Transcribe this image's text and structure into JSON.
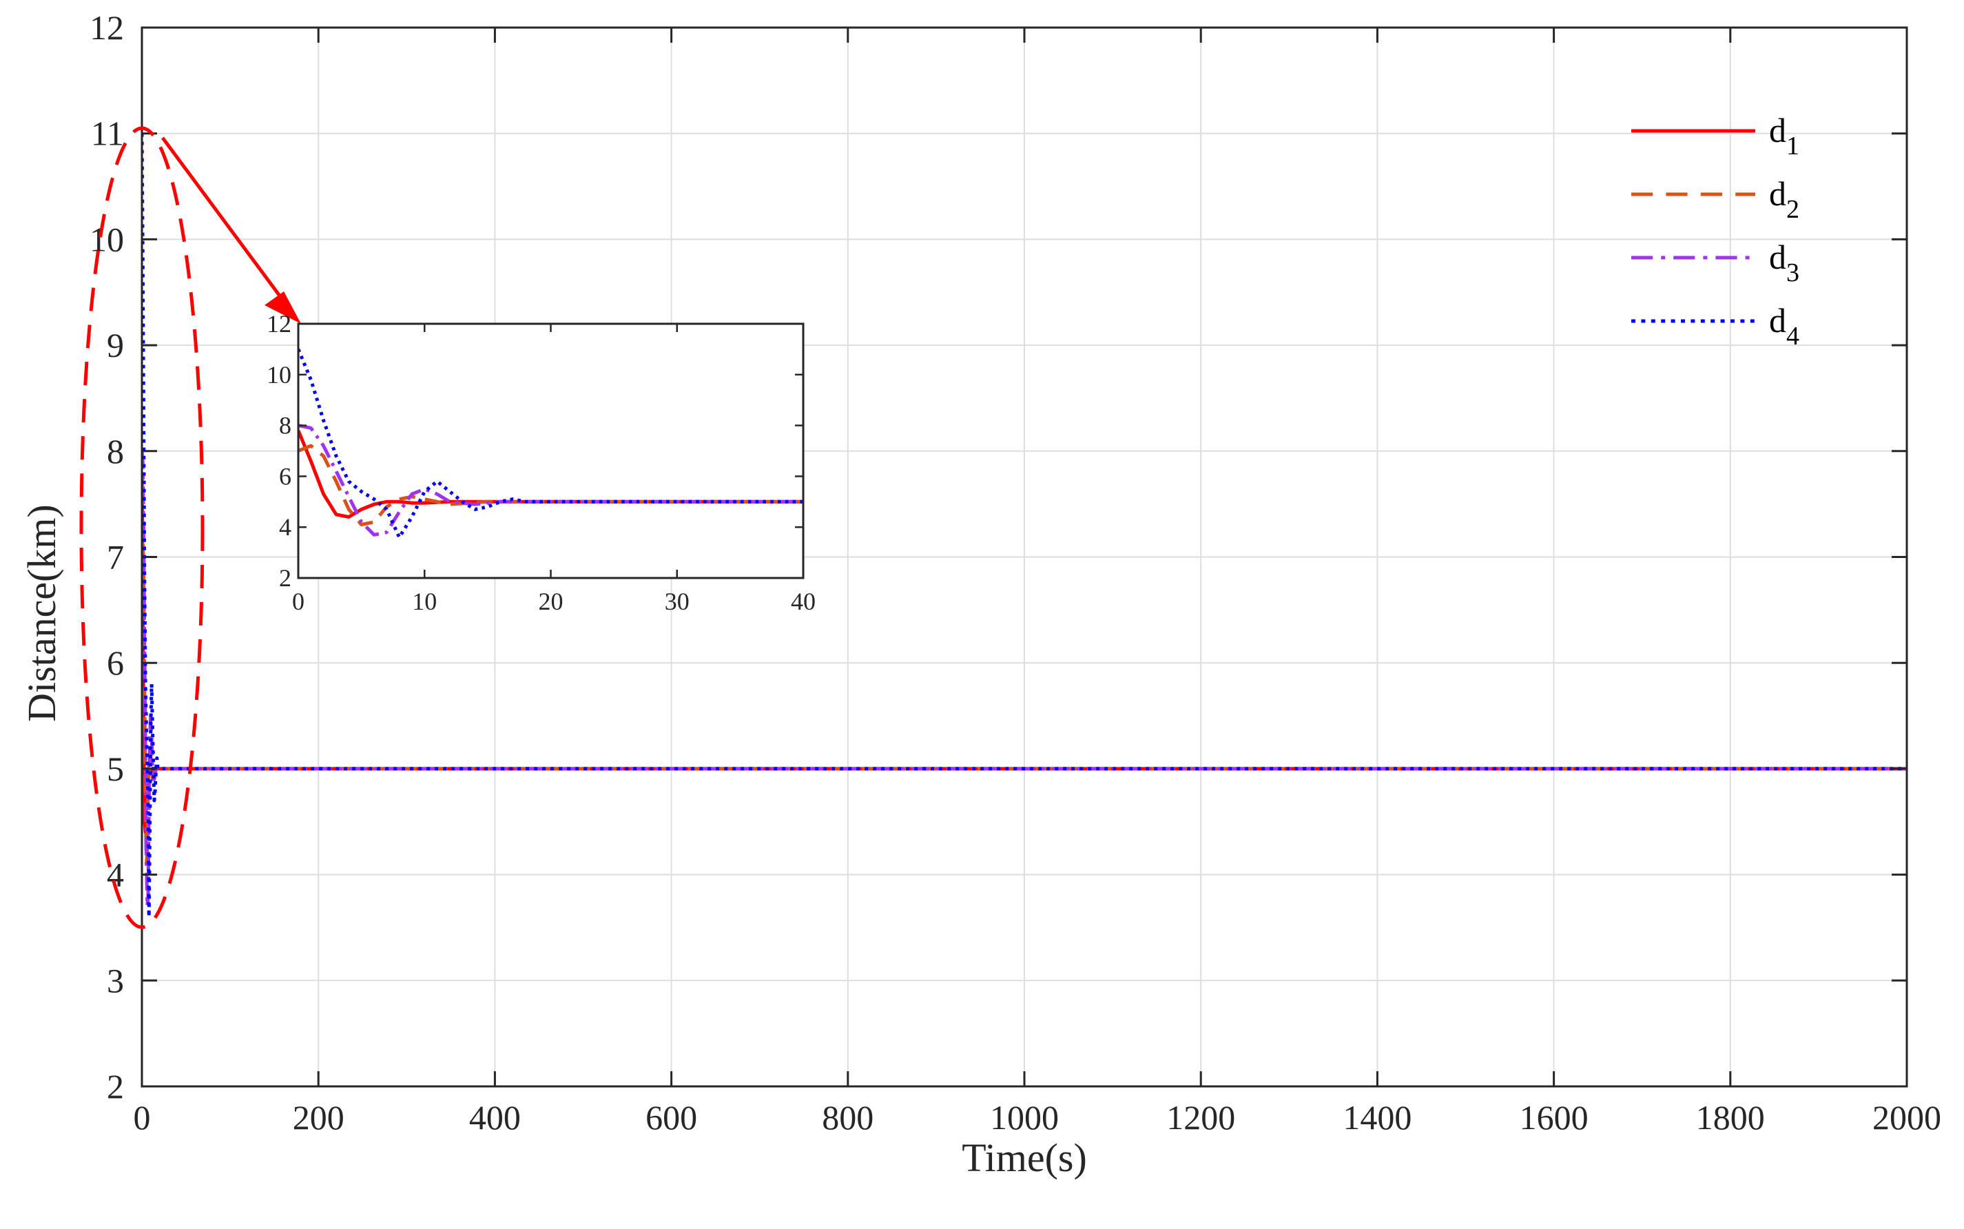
{
  "chart_data": [
    {
      "type": "line",
      "role": "main",
      "title": "",
      "xlabel": "Time(s)",
      "ylabel": "Distance(km)",
      "xlim": [
        0,
        2000
      ],
      "ylim": [
        2,
        12
      ],
      "xticks": [
        0,
        200,
        400,
        600,
        800,
        1000,
        1200,
        1400,
        1600,
        1800,
        2000
      ],
      "yticks": [
        2,
        3,
        4,
        5,
        6,
        7,
        8,
        9,
        10,
        11,
        12
      ],
      "grid": true,
      "legend_position": "top-right",
      "series": [
        {
          "name": "d",
          "subscript": "1",
          "color": "#ff0000",
          "dash": "solid",
          "x": [
            0,
            1,
            2,
            3,
            4,
            5,
            6,
            7,
            8,
            9,
            10,
            12,
            15,
            20,
            2000
          ],
          "y": [
            7.8,
            6.6,
            5.3,
            4.5,
            4.4,
            4.7,
            4.9,
            5.0,
            5.0,
            4.95,
            4.95,
            5.0,
            5.0,
            5.0,
            5.0
          ]
        },
        {
          "name": "d",
          "subscript": "2",
          "color": "#d95319",
          "dash": "dashed",
          "x": [
            0,
            1,
            2,
            3,
            4,
            5,
            6,
            7,
            8,
            9,
            10,
            12,
            15,
            20,
            2000
          ],
          "y": [
            7.0,
            7.2,
            6.8,
            5.8,
            4.7,
            4.1,
            4.2,
            4.8,
            5.1,
            5.2,
            5.1,
            4.9,
            5.0,
            5.0,
            5.0
          ]
        },
        {
          "name": "d",
          "subscript": "3",
          "color": "#a033ee",
          "dash": "dashdot",
          "x": [
            0,
            1,
            2,
            3,
            4,
            5,
            6,
            7,
            8,
            9,
            10,
            11,
            12,
            14,
            16,
            20,
            2000
          ],
          "y": [
            8.0,
            7.9,
            7.2,
            6.2,
            5.2,
            4.2,
            3.7,
            3.8,
            4.6,
            5.3,
            5.5,
            5.3,
            5.0,
            4.9,
            5.0,
            5.0,
            5.0
          ]
        },
        {
          "name": "d",
          "subscript": "4",
          "color": "#0000ff",
          "dash": "dotted",
          "x": [
            0,
            1,
            2,
            3,
            4,
            5,
            6,
            7,
            8,
            9,
            10,
            11,
            12,
            13,
            14,
            15,
            16,
            17,
            18,
            20,
            2000
          ],
          "y": [
            11.0,
            9.8,
            8.2,
            6.8,
            5.8,
            5.4,
            5.1,
            4.7,
            3.6,
            4.4,
            5.4,
            5.8,
            5.4,
            5.0,
            4.7,
            4.8,
            5.0,
            5.1,
            5.0,
            5.0,
            5.0
          ]
        }
      ],
      "annotations": [
        "dashed red ellipse around initial transient",
        "red arrow pointing to zoomed inset"
      ]
    },
    {
      "type": "line",
      "role": "inset",
      "title": "",
      "xlabel": "",
      "ylabel": "",
      "xlim": [
        0,
        40
      ],
      "ylim": [
        2,
        12
      ],
      "xticks": [
        0,
        10,
        20,
        30,
        40
      ],
      "yticks": [
        2,
        4,
        6,
        8,
        10,
        12
      ],
      "grid": false,
      "series_ref": "same as main, zoomed to 0-40 s"
    }
  ]
}
